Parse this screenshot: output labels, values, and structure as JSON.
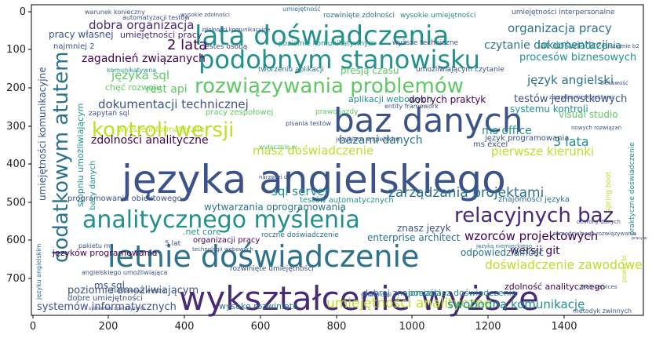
{
  "axes": {
    "x_ticks": [
      "0",
      "200",
      "400",
      "600",
      "800",
      "1000",
      "1200",
      "1400"
    ],
    "y_ticks": [
      "0",
      "100",
      "200",
      "300",
      "400",
      "500",
      "600",
      "700"
    ]
  },
  "palette": [
    "#440154",
    "#3b528b",
    "#21918c",
    "#5ec962",
    "#fde725",
    "#2c728e",
    "#482878",
    "#bddf26"
  ],
  "words": [
    {
      "text": "języka angielskiego",
      "color": "#3b528b"
    },
    {
      "text": "wykształcenie wyższe",
      "color": "#482878"
    },
    {
      "text": "letnie doświadczenie",
      "color": "#2c728e"
    },
    {
      "text": "baz danych",
      "color": "#3b528b"
    },
    {
      "text": "lata doświadczenia",
      "color": "#21918c"
    },
    {
      "text": "podobnym stanowisku",
      "color": "#21918c"
    },
    {
      "text": "analitycznego myślenia",
      "color": "#21918c"
    },
    {
      "text": "rozwiązywania problemów",
      "color": "#5ec962"
    },
    {
      "text": "kontroli wersji",
      "color": "#bddf26"
    },
    {
      "text": "relacyjnych baz",
      "color": "#482878"
    },
    {
      "text": "dodatkowym atutem",
      "color": "#2c728e"
    },
    {
      "text": "zarządzania projektami",
      "color": "#2c728e"
    },
    {
      "text": "umiejętności analityczne",
      "color": "#bddf26"
    },
    {
      "text": "doświadczenie zawodowe",
      "color": "#bddf26"
    },
    {
      "text": "wzorców projektowych",
      "color": "#440154"
    },
    {
      "text": "systemów informatycznych",
      "color": "#3b528b"
    },
    {
      "text": "dokumentacji technicznej",
      "color": "#3b528b"
    },
    {
      "text": "dobra organizacja",
      "color": "#482878"
    },
    {
      "text": "organizacja pracy",
      "color": "#2c728e"
    },
    {
      "text": "czytanie dokumentacji",
      "color": "#2c728e"
    },
    {
      "text": "zagadnień związanych",
      "color": "#440154"
    },
    {
      "text": "zdolności analityczne",
      "color": "#440154"
    },
    {
      "text": "język angielski",
      "color": "#2c728e"
    },
    {
      "text": "testów jednostkowych",
      "color": "#3b528b"
    },
    {
      "text": "swobodną komunikację",
      "color": "#21918c"
    },
    {
      "text": "sql server",
      "color": "#21918c"
    },
    {
      "text": "języka sql",
      "color": "#5ec962"
    },
    {
      "text": "2 lata",
      "color": "#440154"
    },
    {
      "text": "masz doświadczenie",
      "color": "#bddf26"
    },
    {
      "text": "bazami danych",
      "color": "#2c728e"
    },
    {
      "text": "procesów biznesowych",
      "color": "#21918c"
    },
    {
      "text": "pracy własnej",
      "color": "#3b528b"
    },
    {
      "text": "ms office",
      "color": "#21918c"
    },
    {
      "text": "3 lata",
      "color": "#21918c"
    },
    {
      "text": "pierwsze kierunki",
      "color": "#bddf26"
    },
    {
      "text": "poziomie umożliwiającym",
      "color": "#3b528b"
    },
    {
      "text": "wytwarzania oprogramowania",
      "color": "#2c728e"
    },
    {
      "text": "języków programowania",
      "color": "#440154"
    },
    {
      "text": "umiejętności komunikacyjne",
      "color": "#3b528b"
    },
    {
      "text": "stopniu umożliwiającym",
      "color": "#21918c"
    },
    {
      "text": "wersji git",
      "color": "#440154"
    },
    {
      "text": "ms sql",
      "color": "#3b528b"
    },
    {
      "text": "rest api",
      "color": "#5ec962"
    },
    {
      "text": "aplikacji webowych",
      "color": "#21918c"
    },
    {
      "text": "dobrych praktyk",
      "color": "#440154"
    },
    {
      "text": "lat doświadczenia",
      "color": "#21918c"
    },
    {
      "text": "umiejętności pracy",
      "color": "#482878"
    },
    {
      "text": "najmniej 2",
      "color": "#3b528b"
    },
    {
      "text": "chęć rozwoju",
      "color": "#5ec962"
    },
    {
      "text": "presją czasu",
      "color": "#5ec962"
    },
    {
      "text": "programowania obiektowego",
      "color": "#3b528b"
    },
    {
      "text": "testów automatycznych",
      "color": "#21918c"
    },
    {
      "text": "systemu kontroli",
      "color": "#21918c"
    },
    {
      "text": "visual studio",
      "color": "#5ec962"
    },
    {
      "text": "znasz język",
      "color": "#3b528b"
    },
    {
      "text": "enterprise architect",
      "color": "#2c728e"
    },
    {
      "text": "odpowiedzialność",
      "color": "#2c728e"
    },
    {
      "text": "znajomości języka",
      "color": "#2c728e"
    },
    {
      "text": "zdolność analitycznego",
      "color": "#440154"
    },
    {
      "text": "wysoko rozwinięte",
      "color": "#2c728e"
    },
    {
      "text": "dobre umiejętności",
      "color": "#3b528b"
    },
    {
      "text": "dobrej znajomości",
      "color": "#2c728e"
    },
    {
      "text": "posiadasz doświadczenie",
      "color": "#21918c"
    },
    {
      "text": "język programowania",
      "color": "#3b528b"
    },
    {
      "text": ".net core",
      "color": "#21918c"
    },
    {
      "text": "organizacji pracy",
      "color": "#440154"
    },
    {
      "text": "rozwinięte umiejętności",
      "color": "#3b528b"
    },
    {
      "text": "bazy danych",
      "color": "#21918c"
    },
    {
      "text": "ms excel",
      "color": "#3b528b"
    },
    {
      "text": "pracy zespołowej",
      "color": "#5ec962"
    },
    {
      "text": "zapytań sql",
      "color": "#3b528b"
    },
    {
      "text": "wyższe informatyczne",
      "color": "#bddf26"
    },
    {
      "text": "jesteś osobą",
      "color": "#3b528b"
    },
    {
      "text": "poziomie komunikatywnym",
      "color": "#21918c"
    },
    {
      "text": "tworzeniu aplikacji",
      "color": "#2c728e"
    },
    {
      "text": "umożliwiającym czytanie",
      "color": "#3b528b"
    },
    {
      "text": "wyższe techniczne",
      "color": "#3b528b"
    },
    {
      "text": "rozwinięte zdolności",
      "color": "#2c728e"
    },
    {
      "text": "umiejętności interpersonalne",
      "color": "#3b528b"
    },
    {
      "text": "wysokie umiejętności",
      "color": "#21918c"
    },
    {
      "text": "umiejętność",
      "color": "#2c728e"
    },
    {
      "text": "warunek konieczny",
      "color": "#3b528b"
    },
    {
      "text": "roczne doświadczenie",
      "color": "#2c728e"
    },
    {
      "text": "jezykiem angielskim",
      "color": "#3b528b"
    },
    {
      "text": "prawo jazdy",
      "color": "#5ec962"
    },
    {
      "text": "pisania testów",
      "color": "#3b528b"
    },
    {
      "text": "entity framework",
      "color": "#3b528b"
    },
    {
      "text": "notacji uml",
      "color": "#3b528b"
    },
    {
      "text": "języku angielskim",
      "color": "#2c728e"
    },
    {
      "text": "angielskiego umożliwiająca",
      "color": "#3b528b"
    },
    {
      "text": "komunikatywna",
      "color": "#21918c"
    },
    {
      "text": "pakietu ms",
      "color": "#3b528b"
    },
    {
      "text": "5 lat",
      "color": "#3b528b"
    },
    {
      "text": "wyłącznie w",
      "color": "#5ec962"
    },
    {
      "text": "nowych rozwiązań",
      "color": "#3b528b"
    },
    {
      "text": "spring boot",
      "color": "#bddf26"
    },
    {
      "text": "praktyczne doświadczenie",
      "color": "#21918c"
    },
    {
      "text": "metodyk zwinnych",
      "color": "#3b528b"
    },
    {
      "text": "web services",
      "color": "#3b528b"
    },
    {
      "text": "power bi",
      "color": "#bddf26"
    },
    {
      "text": "pracy w",
      "color": "#3b528b"
    },
    {
      "text": "zarządzaniu projektami",
      "color": "#3b528b"
    },
    {
      "text": "samodzielnego rozwiązywania",
      "color": "#3b528b"
    },
    {
      "text": "podstawowa wiedza",
      "color": "#3b528b"
    },
    {
      "text": "systemów operacyjnych",
      "color": "#3b528b"
    },
    {
      "text": "automatyzacji testów",
      "color": "#3b528b"
    },
    {
      "text": "języka niemieckiego",
      "color": "#2c728e"
    },
    {
      "text": "ciekawość",
      "color": "#3b528b"
    },
    {
      "text": "technologii webowych",
      "color": "#3b528b"
    },
    {
      "text": "narzędzi do",
      "color": "#3b528b"
    },
    {
      "text": "zdolności komunikacyjne",
      "color": "#3b528b"
    },
    {
      "text": "poziomie b2",
      "color": "#3b528b"
    },
    {
      "text": "wysokie zdolności",
      "color": "#3b528b"
    },
    {
      "text": "ochrony danych",
      "color": "#3b528b"
    }
  ]
}
